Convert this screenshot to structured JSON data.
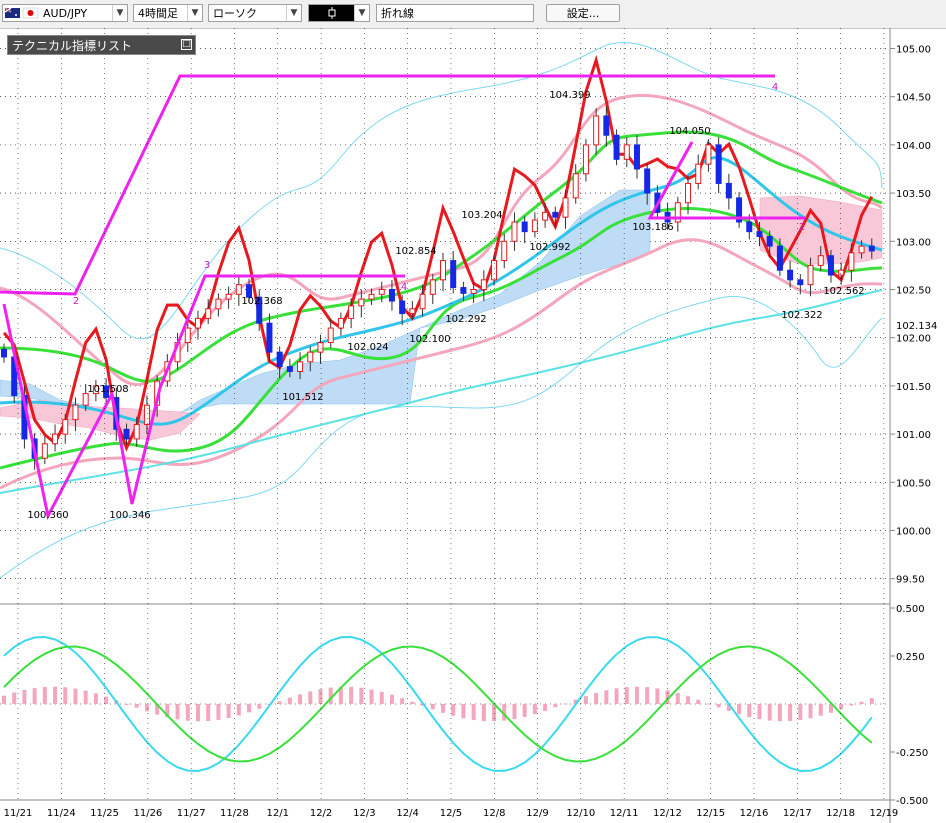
{
  "toolbar": {
    "symbol": "AUD/JPY",
    "timeframe": "4時間足",
    "chart_style": "ローソク",
    "line_type": "折れ線",
    "settings_label": "設定..."
  },
  "panel": {
    "title": "テクニカル指標リスト",
    "minimize_glyph": "□"
  },
  "colors": {
    "bull": "#e8191e",
    "bear": "#1428e6",
    "zigzag": "#ee22ee",
    "signal_red": "#e8191e"
  },
  "chart_data": [
    {
      "type": "candlestick",
      "title": "",
      "ylim": [
        99.3,
        105.15
      ],
      "y_ticks": [
        "105.00",
        "104.50",
        "104.00",
        "103.50",
        "103.00",
        "102.50",
        "102.00",
        "101.50",
        "101.00",
        "100.50",
        "100.00",
        "99.50"
      ],
      "current_price_label": "102.134",
      "x_dates": [
        "11/21",
        "11/24",
        "11/25",
        "11/26",
        "11/27",
        "11/28",
        "12/1",
        "12/2",
        "12/3",
        "12/4",
        "12/5",
        "12/8",
        "12/9",
        "12/10",
        "12/11",
        "12/12",
        "12/15",
        "12/16",
        "12/17",
        "12/18",
        "12/19"
      ],
      "close_series": [
        101.8,
        101.4,
        100.95,
        100.75,
        100.9,
        101.0,
        101.15,
        101.3,
        101.42,
        101.5,
        101.38,
        101.05,
        100.95,
        101.1,
        101.3,
        101.55,
        101.75,
        101.95,
        102.1,
        102.2,
        102.3,
        102.4,
        102.45,
        102.55,
        102.42,
        102.15,
        101.85,
        101.7,
        101.65,
        101.75,
        101.85,
        101.95,
        102.1,
        102.2,
        102.33,
        102.4,
        102.45,
        102.5,
        102.38,
        102.25,
        102.3,
        102.45,
        102.6,
        102.8,
        102.52,
        102.46,
        102.5,
        102.6,
        102.8,
        103.0,
        103.2,
        103.1,
        103.22,
        103.3,
        103.25,
        103.45,
        103.7,
        104.0,
        104.3,
        104.1,
        103.85,
        104.0,
        103.75,
        103.5,
        103.3,
        103.2,
        103.4,
        103.6,
        103.8,
        104.0,
        103.6,
        103.45,
        103.2,
        103.1,
        103.05,
        102.95,
        102.7,
        102.6,
        102.55,
        102.75,
        102.85,
        102.65,
        102.7,
        102.88,
        102.95,
        102.9
      ],
      "extreme_labels": [
        "100.360",
        "101.508",
        "100.346",
        "102.368",
        "101.512",
        "102.024",
        "102.854",
        "102.100",
        "102.292",
        "103.204",
        "102.992",
        "104.399",
        "104.050",
        "103.186",
        "102.322",
        "102.562"
      ],
      "zigzag_labels": [
        "2",
        "3",
        "4",
        "2",
        "4"
      ]
    },
    {
      "type": "line",
      "title": "",
      "ylim": [
        -0.5,
        0.5
      ],
      "y_ticks": [
        "0.500",
        "0.250",
        "-0.250",
        "-0.500"
      ],
      "series_colors": [
        "#3cd8f0",
        "#3ae03a",
        "#f4a6bc"
      ]
    }
  ]
}
